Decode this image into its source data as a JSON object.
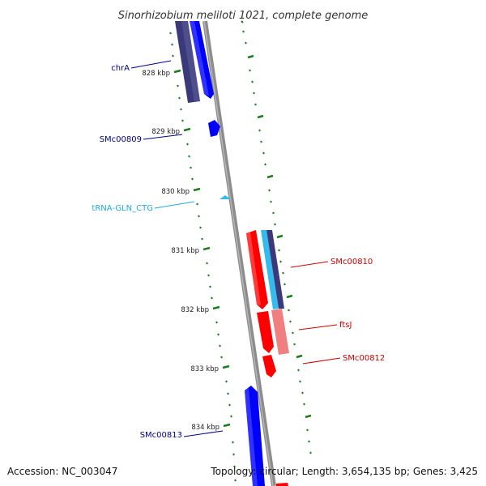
{
  "title": "Sinorhizobium meliloti 1021, complete genome",
  "accession": "Accession: NC_003047",
  "summary": "Topology: circular; Length: 3,654,135 bp; Genes: 3,425",
  "colors": {
    "backbone": "#8c8c8c",
    "ticks": "#1e7a1e",
    "cds_forward": "#0000ff",
    "cds_reverse": "#ff0000",
    "cds_forward_label": "#00008b",
    "cds_reverse_label": "#cc0000",
    "trna": "#33bbee",
    "trna_label": "#22aadd",
    "blast_forward": "#3a3a7a",
    "blast_reverse": "#f08080"
  },
  "kbp_labels": [
    "828 kbp",
    "829 kbp",
    "830 kbp",
    "831 kbp",
    "832 kbp",
    "833 kbp",
    "834 kbp"
  ],
  "genes": [
    {
      "name": "chrA",
      "type": "cds",
      "strand": "forward"
    },
    {
      "name": "SMc00809",
      "type": "cds",
      "strand": "forward"
    },
    {
      "name": "tRNA-GLN_CTG",
      "type": "tRNA",
      "strand": "forward"
    },
    {
      "name": "SMc00810",
      "type": "cds",
      "strand": "reverse"
    },
    {
      "name": "ftsJ",
      "type": "cds",
      "strand": "reverse"
    },
    {
      "name": "SMc00812",
      "type": "cds",
      "strand": "reverse"
    },
    {
      "name": "SMc00813",
      "type": "cds",
      "strand": "forward"
    }
  ]
}
